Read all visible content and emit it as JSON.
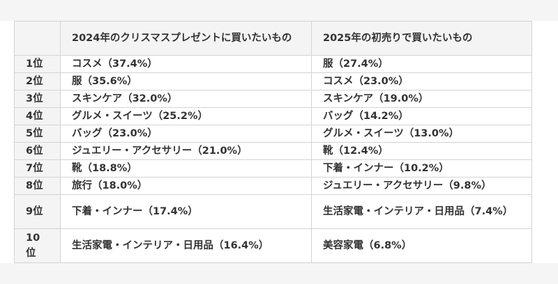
{
  "table": {
    "headers": {
      "rank": "",
      "col_2024": "2024年のクリスマスプレゼントに買いたいもの",
      "col_2025": "2025年の初売りで買いたいもの"
    },
    "rows": [
      {
        "rank": "1位",
        "item_2024": "コスメ（37.4%）",
        "item_2025": "服（27.4%）"
      },
      {
        "rank": "2位",
        "item_2024": "服（35.6%）",
        "item_2025": "コスメ（23.0%）"
      },
      {
        "rank": "3位",
        "item_2024": "スキンケア（32.0%）",
        "item_2025": "スキンケア（19.0%）"
      },
      {
        "rank": "4位",
        "item_2024": "グルメ・スイーツ（25.2%）",
        "item_2025": "バッグ（14.2%）"
      },
      {
        "rank": "5位",
        "item_2024": "バッグ（23.0%）",
        "item_2025": "グルメ・スイーツ（13.0%）"
      },
      {
        "rank": "6位",
        "item_2024": "ジュエリー・アクセサリー（21.0%）",
        "item_2025": "靴（12.4%）"
      },
      {
        "rank": "7位",
        "item_2024": "靴（18.8%）",
        "item_2025": "下着・インナー（10.2%）"
      },
      {
        "rank": "8位",
        "item_2024": "旅行（18.0%）",
        "item_2025": "ジュエリー・アクセサリー（9.8%）"
      },
      {
        "rank": "9位",
        "item_2024": "下着・インナー（17.4%）",
        "item_2025": "生活家電・インテリア・日用品（7.4%）"
      },
      {
        "rank": "10位",
        "item_2024": "生活家電・インテリア・日用品（16.4%）",
        "item_2025": "美容家電（6.8%）"
      }
    ]
  }
}
